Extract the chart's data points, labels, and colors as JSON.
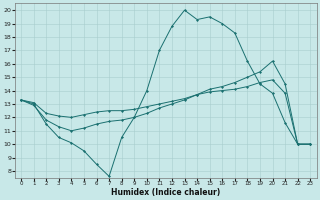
{
  "xlabel": "Humidex (Indice chaleur)",
  "bg_color": "#c8e8e8",
  "line_color": "#1a7070",
  "xlim": [
    -0.5,
    23.5
  ],
  "ylim": [
    7.5,
    20.5
  ],
  "xticks": [
    0,
    1,
    2,
    3,
    4,
    5,
    6,
    7,
    8,
    9,
    10,
    11,
    12,
    13,
    14,
    15,
    16,
    17,
    18,
    19,
    20,
    21,
    22,
    23
  ],
  "yticks": [
    8,
    9,
    10,
    11,
    12,
    13,
    14,
    15,
    16,
    17,
    18,
    19,
    20
  ],
  "line1_x": [
    0,
    1,
    2,
    3,
    4,
    5,
    6,
    7,
    8,
    9,
    10,
    11,
    12,
    13,
    14,
    15,
    16,
    17,
    18,
    19,
    20,
    21,
    22,
    23
  ],
  "line1_y": [
    13.3,
    13.0,
    11.5,
    10.5,
    10.1,
    9.5,
    8.5,
    7.6,
    10.5,
    12.0,
    14.0,
    17.0,
    18.8,
    20.0,
    19.3,
    19.5,
    19.0,
    18.3,
    16.2,
    14.5,
    13.8,
    11.6,
    10.0,
    10.0
  ],
  "line2_x": [
    0,
    1,
    2,
    3,
    4,
    5,
    6,
    7,
    8,
    9,
    10,
    11,
    12,
    13,
    14,
    15,
    16,
    17,
    18,
    19,
    20,
    21,
    22,
    23
  ],
  "line2_y": [
    13.3,
    12.9,
    11.8,
    11.3,
    11.0,
    11.2,
    11.5,
    11.7,
    11.8,
    12.0,
    12.3,
    12.7,
    13.0,
    13.3,
    13.7,
    14.1,
    14.3,
    14.6,
    15.0,
    15.4,
    16.2,
    14.5,
    10.0,
    10.0
  ],
  "line3_x": [
    0,
    1,
    2,
    3,
    4,
    5,
    6,
    7,
    8,
    9,
    10,
    11,
    12,
    13,
    14,
    15,
    16,
    17,
    18,
    19,
    20,
    21,
    22,
    23
  ],
  "line3_y": [
    13.3,
    13.1,
    12.3,
    12.1,
    12.0,
    12.2,
    12.4,
    12.5,
    12.5,
    12.6,
    12.8,
    13.0,
    13.2,
    13.4,
    13.7,
    13.9,
    14.0,
    14.1,
    14.3,
    14.6,
    14.8,
    13.8,
    10.0,
    10.0
  ]
}
